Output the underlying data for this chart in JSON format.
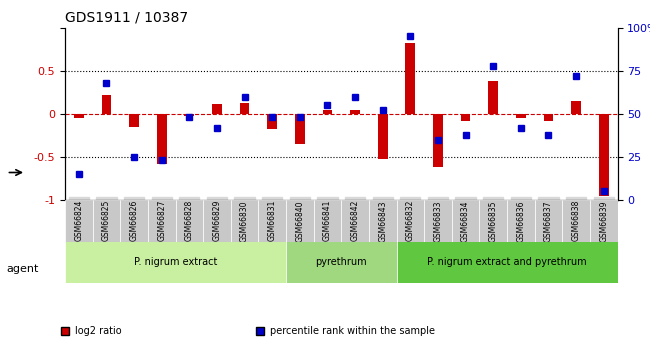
{
  "title": "GDS1911 / 10387",
  "samples": [
    "GSM66824",
    "GSM66825",
    "GSM66826",
    "GSM66827",
    "GSM66828",
    "GSM66829",
    "GSM66830",
    "GSM66831",
    "GSM66840",
    "GSM66841",
    "GSM66842",
    "GSM66843",
    "GSM66832",
    "GSM66833",
    "GSM66834",
    "GSM66835",
    "GSM66836",
    "GSM66837",
    "GSM66838",
    "GSM66839"
  ],
  "log2_ratio": [
    -0.05,
    0.22,
    -0.15,
    -0.58,
    -0.02,
    0.12,
    0.13,
    -0.18,
    -0.35,
    0.05,
    0.05,
    -0.52,
    0.82,
    -0.62,
    -0.08,
    0.38,
    -0.05,
    -0.08,
    0.15,
    -0.95
  ],
  "pct_rank": [
    15,
    68,
    25,
    23,
    48,
    42,
    60,
    48,
    48,
    55,
    60,
    52,
    95,
    35,
    38,
    78,
    42,
    38,
    72,
    5
  ],
  "groups": [
    {
      "label": "P. nigrum extract",
      "start": 0,
      "end": 7,
      "color": "#c8f0a0"
    },
    {
      "label": "pyrethrum",
      "start": 8,
      "end": 11,
      "color": "#a0d880"
    },
    {
      "label": "P. nigrum extract and pyrethrum",
      "start": 12,
      "end": 19,
      "color": "#60c840"
    }
  ],
  "bar_color_red": "#cc0000",
  "bar_color_blue": "#0000cc",
  "ylim_left": [
    -1.0,
    1.0
  ],
  "ylim_right": [
    0,
    100
  ],
  "yticks_left": [
    -1,
    -0.5,
    0,
    0.5,
    1
  ],
  "yticks_right": [
    0,
    25,
    50,
    75,
    100
  ],
  "hlines": [
    0.5,
    -0.5
  ],
  "agent_label": "agent",
  "legend_items": [
    {
      "label": "log2 ratio",
      "color": "#cc0000"
    },
    {
      "label": "percentile rank within the sample",
      "color": "#0000cc"
    }
  ]
}
